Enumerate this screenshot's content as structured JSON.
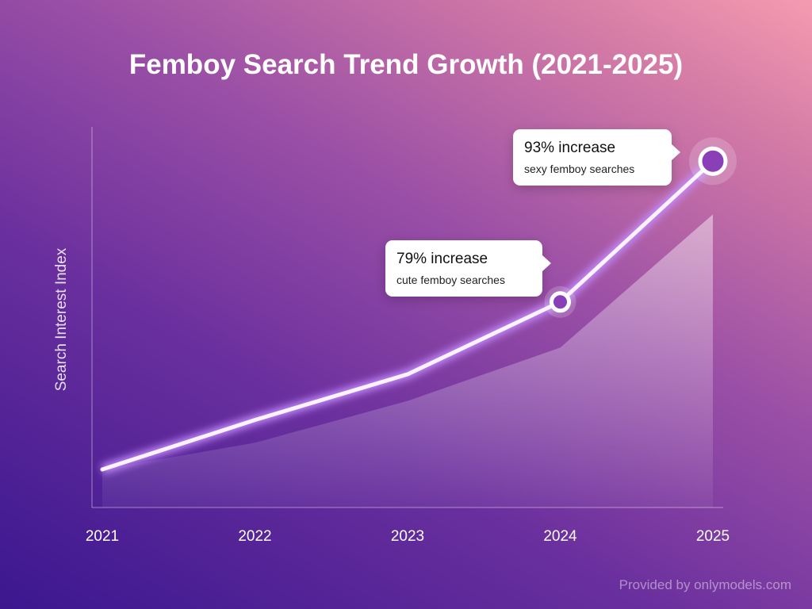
{
  "chart_data": {
    "type": "line",
    "title": "Femboy Search Trend Growth (2021-2025)",
    "xlabel": "",
    "ylabel": "Search Interest Index",
    "categories": [
      "2021",
      "2022",
      "2023",
      "2024",
      "2025"
    ],
    "series": [
      {
        "values": [
          10,
          23,
          35,
          54,
          91
        ],
        "style": "line",
        "color": "#ffffff"
      },
      {
        "values": [
          10,
          17,
          28,
          42,
          77
        ],
        "style": "area",
        "color": "#ffffff"
      }
    ],
    "ylim": [
      0,
      100
    ],
    "grid": false,
    "annotations": [
      {
        "category": "2024",
        "main": "79% increase",
        "sub": "cute femboy searches"
      },
      {
        "category": "2025",
        "main": "93% increase",
        "sub": "sexy femboy searches"
      }
    ]
  },
  "credit": "Provided by onlymodels.com"
}
